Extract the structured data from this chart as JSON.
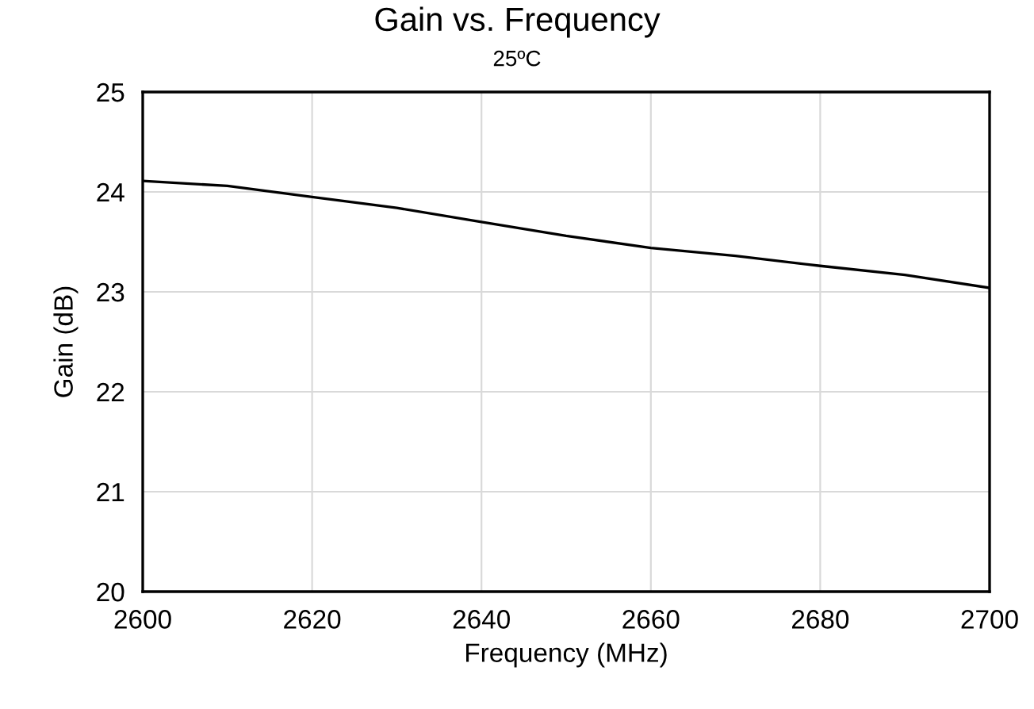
{
  "chart_data": {
    "type": "line",
    "title": "Gain vs. Frequency",
    "subtitle": "25ºC",
    "xlabel": "Frequency (MHz)",
    "ylabel": "Gain (dB)",
    "x": [
      2600,
      2610,
      2620,
      2630,
      2640,
      2650,
      2660,
      2670,
      2680,
      2690,
      2700
    ],
    "series": [
      {
        "color": "#000000",
        "values": [
          24.11,
          24.06,
          23.95,
          23.84,
          23.7,
          23.56,
          23.44,
          23.36,
          23.26,
          23.17,
          23.04
        ]
      }
    ],
    "xlim": [
      2600,
      2700
    ],
    "xticks": [
      2600,
      2620,
      2640,
      2660,
      2680,
      2700
    ],
    "ylim": [
      20,
      25
    ],
    "yticks": [
      20,
      21,
      22,
      23,
      24,
      25
    ],
    "grid": true,
    "marker": "none",
    "line_style": "solid"
  }
}
